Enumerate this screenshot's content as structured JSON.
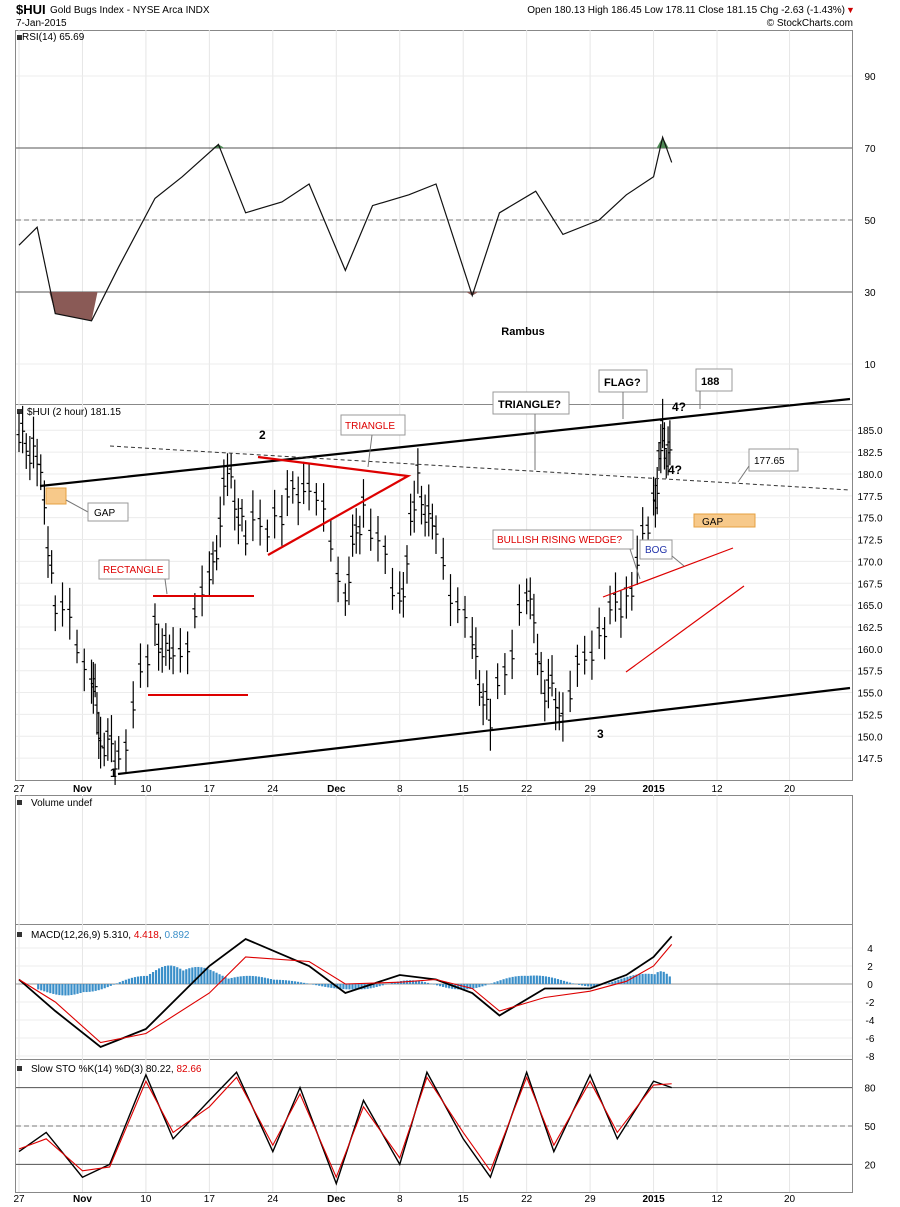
{
  "header": {
    "symbol": "$HUI",
    "name": "Gold Bugs Index - NYSE Arca INDX",
    "date": "7-Jan-2015",
    "quote": "Open 180.13 High 186.45 Low 178.11 Close 181.15 Chg -2.63 (-1.43%)",
    "chg_arrow": "▼",
    "credit": "© StockCharts.com"
  },
  "colors": {
    "up_annot": "#dd0000",
    "macd_hist": "#3a8fc9",
    "rsi_over": "#4e8a55",
    "rsi_under": "#8a5a56",
    "gap_fill": "#f7c98a"
  },
  "x_ticks": [
    {
      "label": "27",
      "d": "2014-10-27"
    },
    {
      "label": "Nov",
      "d": "2014-11-03",
      "bold": true
    },
    {
      "label": "10",
      "d": "2014-11-10"
    },
    {
      "label": "17",
      "d": "2014-11-17"
    },
    {
      "label": "24",
      "d": "2014-11-24"
    },
    {
      "label": "Dec",
      "d": "2014-12-01",
      "bold": true
    },
    {
      "label": "8",
      "d": "2014-12-08"
    },
    {
      "label": "15",
      "d": "2014-12-15"
    },
    {
      "label": "22",
      "d": "2014-12-22"
    },
    {
      "label": "29",
      "d": "2014-12-29"
    },
    {
      "label": "2015",
      "d": "2015-01-05",
      "bold": true
    },
    {
      "label": "12",
      "d": "2015-01-12"
    },
    {
      "label": "20",
      "d": "2015-01-20"
    }
  ],
  "chart_data": [
    {
      "type": "line",
      "panel": "rsi",
      "title": "RSI(14) 65.69",
      "ylim": [
        0,
        100
      ],
      "yticks": [
        10,
        30,
        50,
        70,
        90
      ],
      "ref_lines": [
        30,
        50,
        70
      ],
      "annotations": [
        "Rambus"
      ],
      "series": [
        {
          "x": [
            "2014-10-27",
            "2014-10-29",
            "2014-10-31",
            "2014-11-04",
            "2014-11-07",
            "2014-11-11",
            "2014-11-14",
            "2014-11-18",
            "2014-11-21",
            "2014-11-25",
            "2014-11-28",
            "2014-12-02",
            "2014-12-05",
            "2014-12-09",
            "2014-12-12",
            "2014-12-16",
            "2014-12-19",
            "2014-12-23",
            "2014-12-26",
            "2014-12-30",
            "2015-01-02",
            "2015-01-05",
            "2015-01-06",
            "2015-01-07"
          ],
          "values": [
            43,
            48,
            24,
            22,
            37,
            56,
            62,
            71,
            52,
            55,
            60,
            36,
            54,
            57,
            60,
            29,
            52,
            58,
            46,
            50,
            57,
            62,
            73,
            66
          ]
        }
      ]
    },
    {
      "type": "ohlc",
      "panel": "price",
      "title": "$HUI (2 hour) 181.15",
      "ylim": [
        145,
        188
      ],
      "yticks": [
        147.5,
        150.0,
        152.5,
        155.0,
        157.5,
        160.0,
        162.5,
        165.0,
        167.5,
        170.0,
        172.5,
        175.0,
        177.5,
        180.0,
        182.5,
        185.0
      ],
      "series": [
        {
          "x": [
            "2014-10-27",
            "2014-10-29",
            "2014-10-31",
            "2014-11-04",
            "2014-11-05",
            "2014-11-07",
            "2014-11-11",
            "2014-11-13",
            "2014-11-17",
            "2014-11-19",
            "2014-11-21",
            "2014-11-25",
            "2014-11-28",
            "2014-12-02",
            "2014-12-04",
            "2014-12-08",
            "2014-12-10",
            "2014-12-12",
            "2014-12-16",
            "2014-12-18",
            "2014-12-22",
            "2014-12-24",
            "2014-12-26",
            "2014-12-30",
            "2015-01-02",
            "2015-01-05",
            "2015-01-06",
            "2015-01-07"
          ],
          "values": [
            184.0,
            182.5,
            166.0,
            157.5,
            150.0,
            147.5,
            162.0,
            158.0,
            167.0,
            180.0,
            173.0,
            176.0,
            180.0,
            167.0,
            177.0,
            165.0,
            179.0,
            172.0,
            160.0,
            151.5,
            167.0,
            156.0,
            153.5,
            162.5,
            166.0,
            176.0,
            184.0,
            181.15
          ]
        }
      ],
      "annotations": {
        "waves": [
          "1",
          "2",
          "3",
          "4?",
          "4?"
        ],
        "triangle": "TRIANGLE",
        "triangle_q": "TRIANGLE?",
        "flag": "FLAG?",
        "target": "188",
        "level": "177.65",
        "gap1": "GAP",
        "gap2": "GAP",
        "rectangle": "RECTANGLE",
        "wedge": "BULLISH RISING WEDGE?",
        "bog": "BOG"
      }
    },
    {
      "type": "bar",
      "panel": "volume",
      "title": "Volume undef"
    },
    {
      "type": "line",
      "panel": "macd",
      "title": "MACD(12,26,9)",
      "legend_values": [
        "5.310",
        "4.418",
        "0.892"
      ],
      "ylim": [
        -8,
        6
      ],
      "yticks": [
        -8,
        -6,
        -4,
        -2,
        0,
        2,
        4
      ],
      "series": [
        {
          "name": "MACD",
          "x": [
            "2014-10-27",
            "2014-10-31",
            "2014-11-05",
            "2014-11-10",
            "2014-11-17",
            "2014-11-21",
            "2014-11-28",
            "2014-12-02",
            "2014-12-08",
            "2014-12-12",
            "2014-12-16",
            "2014-12-19",
            "2014-12-24",
            "2014-12-29",
            "2015-01-02",
            "2015-01-05",
            "2015-01-07"
          ],
          "values": [
            0.5,
            -3.0,
            -7.0,
            -5.0,
            2.0,
            5.0,
            2.0,
            -1.0,
            1.0,
            0.5,
            -1.0,
            -3.5,
            -0.5,
            -0.5,
            1.0,
            3.0,
            5.3
          ]
        },
        {
          "name": "Signal",
          "x": [
            "2014-10-27",
            "2014-10-31",
            "2014-11-05",
            "2014-11-10",
            "2014-11-17",
            "2014-11-21",
            "2014-11-28",
            "2014-12-02",
            "2014-12-08",
            "2014-12-12",
            "2014-12-16",
            "2014-12-19",
            "2014-12-24",
            "2014-12-29",
            "2015-01-02",
            "2015-01-05",
            "2015-01-07"
          ],
          "values": [
            0.5,
            -2.0,
            -6.5,
            -5.5,
            -1.0,
            3.0,
            2.5,
            0.0,
            0.2,
            0.5,
            -0.5,
            -3.0,
            -1.5,
            -0.8,
            0.3,
            2.0,
            4.4
          ]
        }
      ],
      "hist": {
        "x": [
          "2014-10-29",
          "2014-11-03",
          "2014-11-10",
          "2014-11-14",
          "2014-11-19",
          "2014-11-24",
          "2014-12-03",
          "2014-12-09",
          "2014-12-15",
          "2014-12-22",
          "2014-12-29",
          "2015-01-05",
          "2015-01-07"
        ],
        "values": [
          -1.0,
          -1.5,
          1.5,
          2.5,
          1.0,
          0.8,
          -1.0,
          0.7,
          -1.0,
          1.5,
          -0.5,
          1.8,
          0.9
        ]
      }
    },
    {
      "type": "line",
      "panel": "sto",
      "title": "Slow STO %K(14) %D(3)",
      "legend_values": [
        "80.22",
        "82.66"
      ],
      "ylim": [
        0,
        100
      ],
      "yticks": [
        20,
        50,
        80
      ],
      "series": [
        {
          "name": "%K",
          "x": [
            "2014-10-27",
            "2014-10-30",
            "2014-11-03",
            "2014-11-06",
            "2014-11-10",
            "2014-11-13",
            "2014-11-17",
            "2014-11-20",
            "2014-11-24",
            "2014-11-27",
            "2014-12-01",
            "2014-12-04",
            "2014-12-08",
            "2014-12-11",
            "2014-12-15",
            "2014-12-18",
            "2014-12-22",
            "2014-12-25",
            "2014-12-29",
            "2015-01-01",
            "2015-01-05",
            "2015-01-07"
          ],
          "values": [
            30,
            45,
            10,
            20,
            90,
            40,
            70,
            92,
            30,
            80,
            5,
            70,
            20,
            92,
            40,
            10,
            92,
            30,
            90,
            40,
            85,
            80
          ]
        },
        {
          "name": "%D",
          "x": [
            "2014-10-27",
            "2014-10-30",
            "2014-11-03",
            "2014-11-06",
            "2014-11-10",
            "2014-11-13",
            "2014-11-17",
            "2014-11-20",
            "2014-11-24",
            "2014-11-27",
            "2014-12-01",
            "2014-12-04",
            "2014-12-08",
            "2014-12-11",
            "2014-12-15",
            "2014-12-18",
            "2014-12-22",
            "2014-12-25",
            "2014-12-29",
            "2015-01-01",
            "2015-01-05",
            "2015-01-07"
          ],
          "values": [
            32,
            40,
            15,
            18,
            85,
            45,
            65,
            88,
            35,
            75,
            10,
            65,
            25,
            88,
            45,
            15,
            88,
            35,
            85,
            45,
            82,
            83
          ]
        }
      ]
    }
  ]
}
